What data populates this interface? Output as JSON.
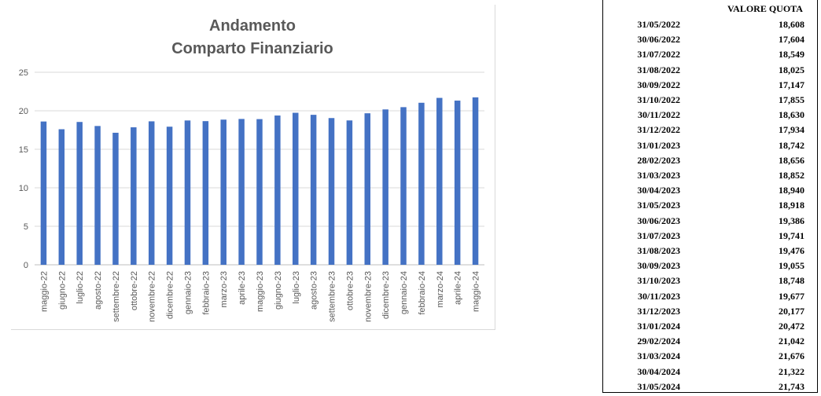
{
  "chart_data": {
    "type": "bar",
    "title": [
      "Andamento",
      "Comparto Finanziario"
    ],
    "categories": [
      "maggio-22",
      "giugno-22",
      "luglio-22",
      "agosto-22",
      "settembre-22",
      "ottobre-22",
      "novembre-22",
      "dicembre-22",
      "gennaio-23",
      "febbraio-23",
      "marzo-23",
      "aprile-23",
      "maggio-23",
      "giugno-23",
      "luglio-23",
      "agosto-23",
      "settembre-23",
      "ottobre-23",
      "novembre-23",
      "dicembre-23",
      "gennaio-24",
      "febbraio-24",
      "marzo-24",
      "aprile-24",
      "maggio-24"
    ],
    "values": [
      18.608,
      17.604,
      18.549,
      18.025,
      17.147,
      17.855,
      18.63,
      17.934,
      18.742,
      18.656,
      18.852,
      18.94,
      18.918,
      19.386,
      19.741,
      19.476,
      19.055,
      18.748,
      19.677,
      20.177,
      20.472,
      21.042,
      21.676,
      21.322,
      21.743
    ],
    "ylim": [
      0,
      25
    ],
    "yticks": [
      0,
      5,
      10,
      15,
      20,
      25
    ],
    "grid": true,
    "bar_color": "#4472c4"
  },
  "table": {
    "header": "VALORE QUOTA",
    "rows": [
      {
        "date": "31/05/2022",
        "value": "18,608"
      },
      {
        "date": "30/06/2022",
        "value": "17,604"
      },
      {
        "date": "31/07/2022",
        "value": "18,549"
      },
      {
        "date": "31/08/2022",
        "value": "18,025"
      },
      {
        "date": "30/09/2022",
        "value": "17,147"
      },
      {
        "date": "31/10/2022",
        "value": "17,855"
      },
      {
        "date": "30/11/2022",
        "value": "18,630"
      },
      {
        "date": "31/12/2022",
        "value": "17,934"
      },
      {
        "date": "31/01/2023",
        "value": "18,742"
      },
      {
        "date": "28/02/2023",
        "value": "18,656"
      },
      {
        "date": "31/03/2023",
        "value": "18,852"
      },
      {
        "date": "30/04/2023",
        "value": "18,940"
      },
      {
        "date": "31/05/2023",
        "value": "18,918"
      },
      {
        "date": "30/06/2023",
        "value": "19,386"
      },
      {
        "date": "31/07/2023",
        "value": "19,741"
      },
      {
        "date": "31/08/2023",
        "value": "19,476"
      },
      {
        "date": "30/09/2023",
        "value": "19,055"
      },
      {
        "date": "31/10/2023",
        "value": "18,748"
      },
      {
        "date": "30/11/2023",
        "value": "19,677"
      },
      {
        "date": "31/12/2023",
        "value": "20,177"
      },
      {
        "date": "31/01/2024",
        "value": "20,472"
      },
      {
        "date": "29/02/2024",
        "value": "21,042"
      },
      {
        "date": "31/03/2024",
        "value": "21,676"
      },
      {
        "date": "30/04/2024",
        "value": "21,322"
      },
      {
        "date": "31/05/2024",
        "value": "21,743"
      }
    ]
  }
}
